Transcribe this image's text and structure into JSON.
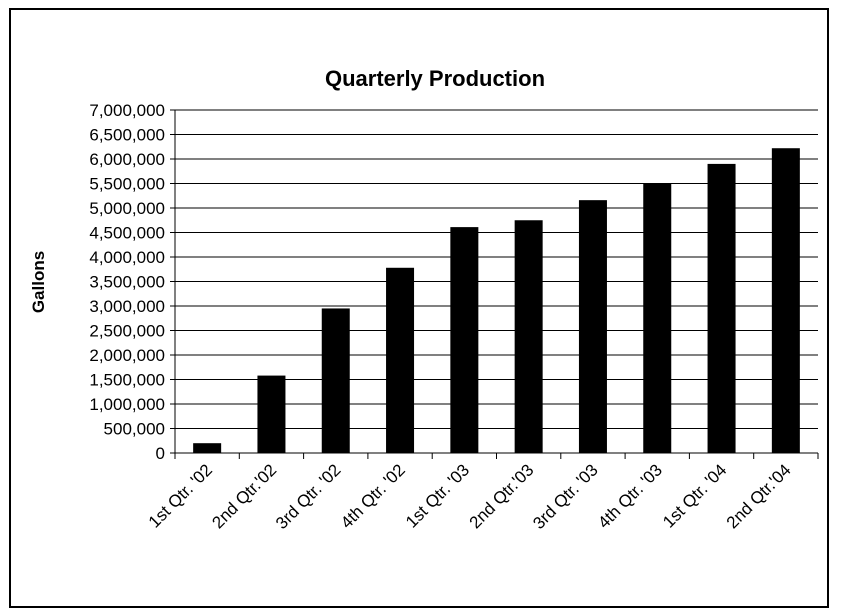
{
  "chart_data": {
    "type": "bar",
    "title": "Quarterly Production",
    "xlabel": "",
    "ylabel": "Gallons",
    "categories": [
      "1st Qtr. '02",
      "2nd Qtr.'02",
      "3rd Qtr. '02",
      "4th Qtr. '02",
      "1st Qtr. '03",
      "2nd Qtr.'03",
      "3rd Qtr. '03",
      "4th Qtr. '03",
      "1st Qtr. '04",
      "2nd Qtr.'04"
    ],
    "values": [
      200000,
      1580000,
      2950000,
      3780000,
      4610000,
      4750000,
      5160000,
      5500000,
      5900000,
      6220000
    ],
    "ylim": [
      0,
      7000000
    ],
    "ytick_step": 500000,
    "ytick_labels": [
      "0",
      "500,000",
      "1,000,000",
      "1,500,000",
      "2,000,000",
      "2,500,000",
      "3,000,000",
      "3,500,000",
      "4,000,000",
      "4,500,000",
      "5,000,000",
      "5,500,000",
      "6,000,000",
      "6,500,000",
      "7,000,000"
    ],
    "grid": true,
    "legend": "none",
    "bar_color": "#000000"
  }
}
